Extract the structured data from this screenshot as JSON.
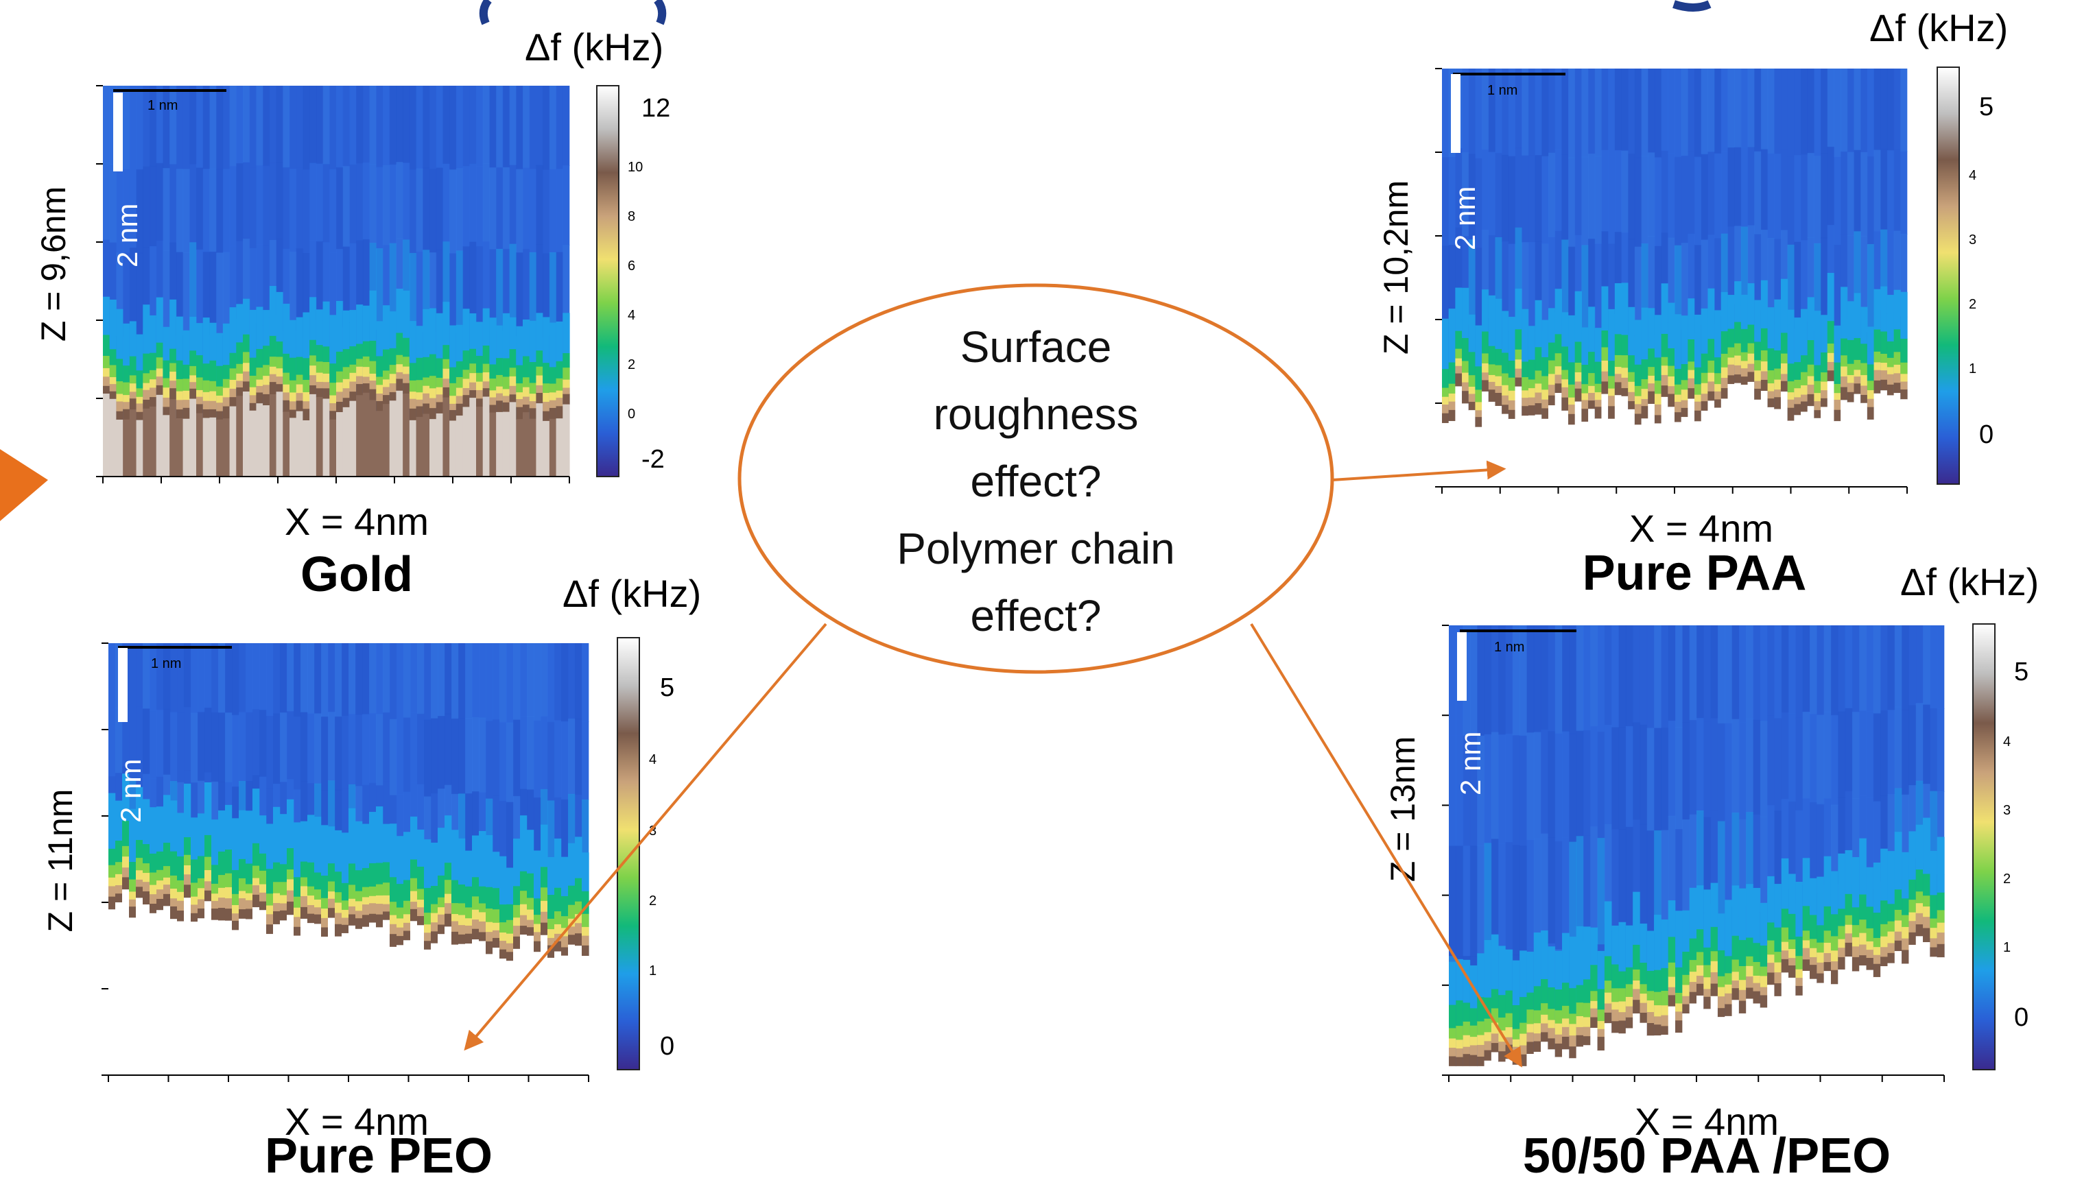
{
  "callout": {
    "lines": [
      "Surface",
      "roughness",
      "effect?",
      "Polymer chain",
      "effect?"
    ],
    "stroke_color": "#e0772a"
  },
  "colormap": [
    "#3a2a8e",
    "#2a5fd6",
    "#1f9ee8",
    "#12b97a",
    "#7ed24a",
    "#f0e070",
    "#c9a27a",
    "#7a5a4a",
    "#bfbfbf",
    "#ffffff"
  ],
  "chart_data": [
    {
      "type": "heatmap",
      "title": "Gold",
      "xlabel": "X = 4nm",
      "ylabel": "Z = 9,6nm",
      "colorbar_label": "Δf (kHz)",
      "colorbar_ticks_major": [
        "12",
        "-2"
      ],
      "colorbar_ticks_minor": [
        "10",
        "8",
        "6",
        "4",
        "2",
        "0"
      ],
      "color_range": [
        -2,
        12
      ],
      "scalebar_horizontal": "1 nm",
      "scalebar_vertical": "2 nm"
    },
    {
      "type": "heatmap",
      "title": "Pure PAA",
      "xlabel": "X = 4nm",
      "ylabel": "Z = 10,2nm",
      "colorbar_label": "Δf (kHz)",
      "colorbar_ticks_major": [
        "5",
        "0"
      ],
      "colorbar_ticks_minor": [
        "4",
        "3",
        "2",
        "1"
      ],
      "color_range": [
        -0.5,
        5.5
      ],
      "scalebar_horizontal": "1 nm",
      "scalebar_vertical": "2 nm"
    },
    {
      "type": "heatmap",
      "title": "Pure PEO",
      "xlabel": "X = 4nm",
      "ylabel": "Z = 11nm",
      "colorbar_label": "Δf (kHz)",
      "colorbar_ticks_major": [
        "5",
        "0"
      ],
      "colorbar_ticks_minor": [
        "4",
        "3",
        "2",
        "1"
      ],
      "color_range": [
        -0.5,
        5.5
      ],
      "scalebar_horizontal": "1 nm",
      "scalebar_vertical": "2 nm"
    },
    {
      "type": "heatmap",
      "title": "50/50 PAA /PEO",
      "xlabel": "X = 4nm",
      "ylabel": "Z = 13nm",
      "colorbar_label": "Δf (kHz)",
      "colorbar_ticks_major": [
        "5",
        "0"
      ],
      "colorbar_ticks_minor": [
        "4",
        "3",
        "2",
        "1"
      ],
      "color_range": [
        -0.5,
        5.5
      ],
      "scalebar_horizontal": "1 nm",
      "scalebar_vertical": "2 nm"
    }
  ]
}
